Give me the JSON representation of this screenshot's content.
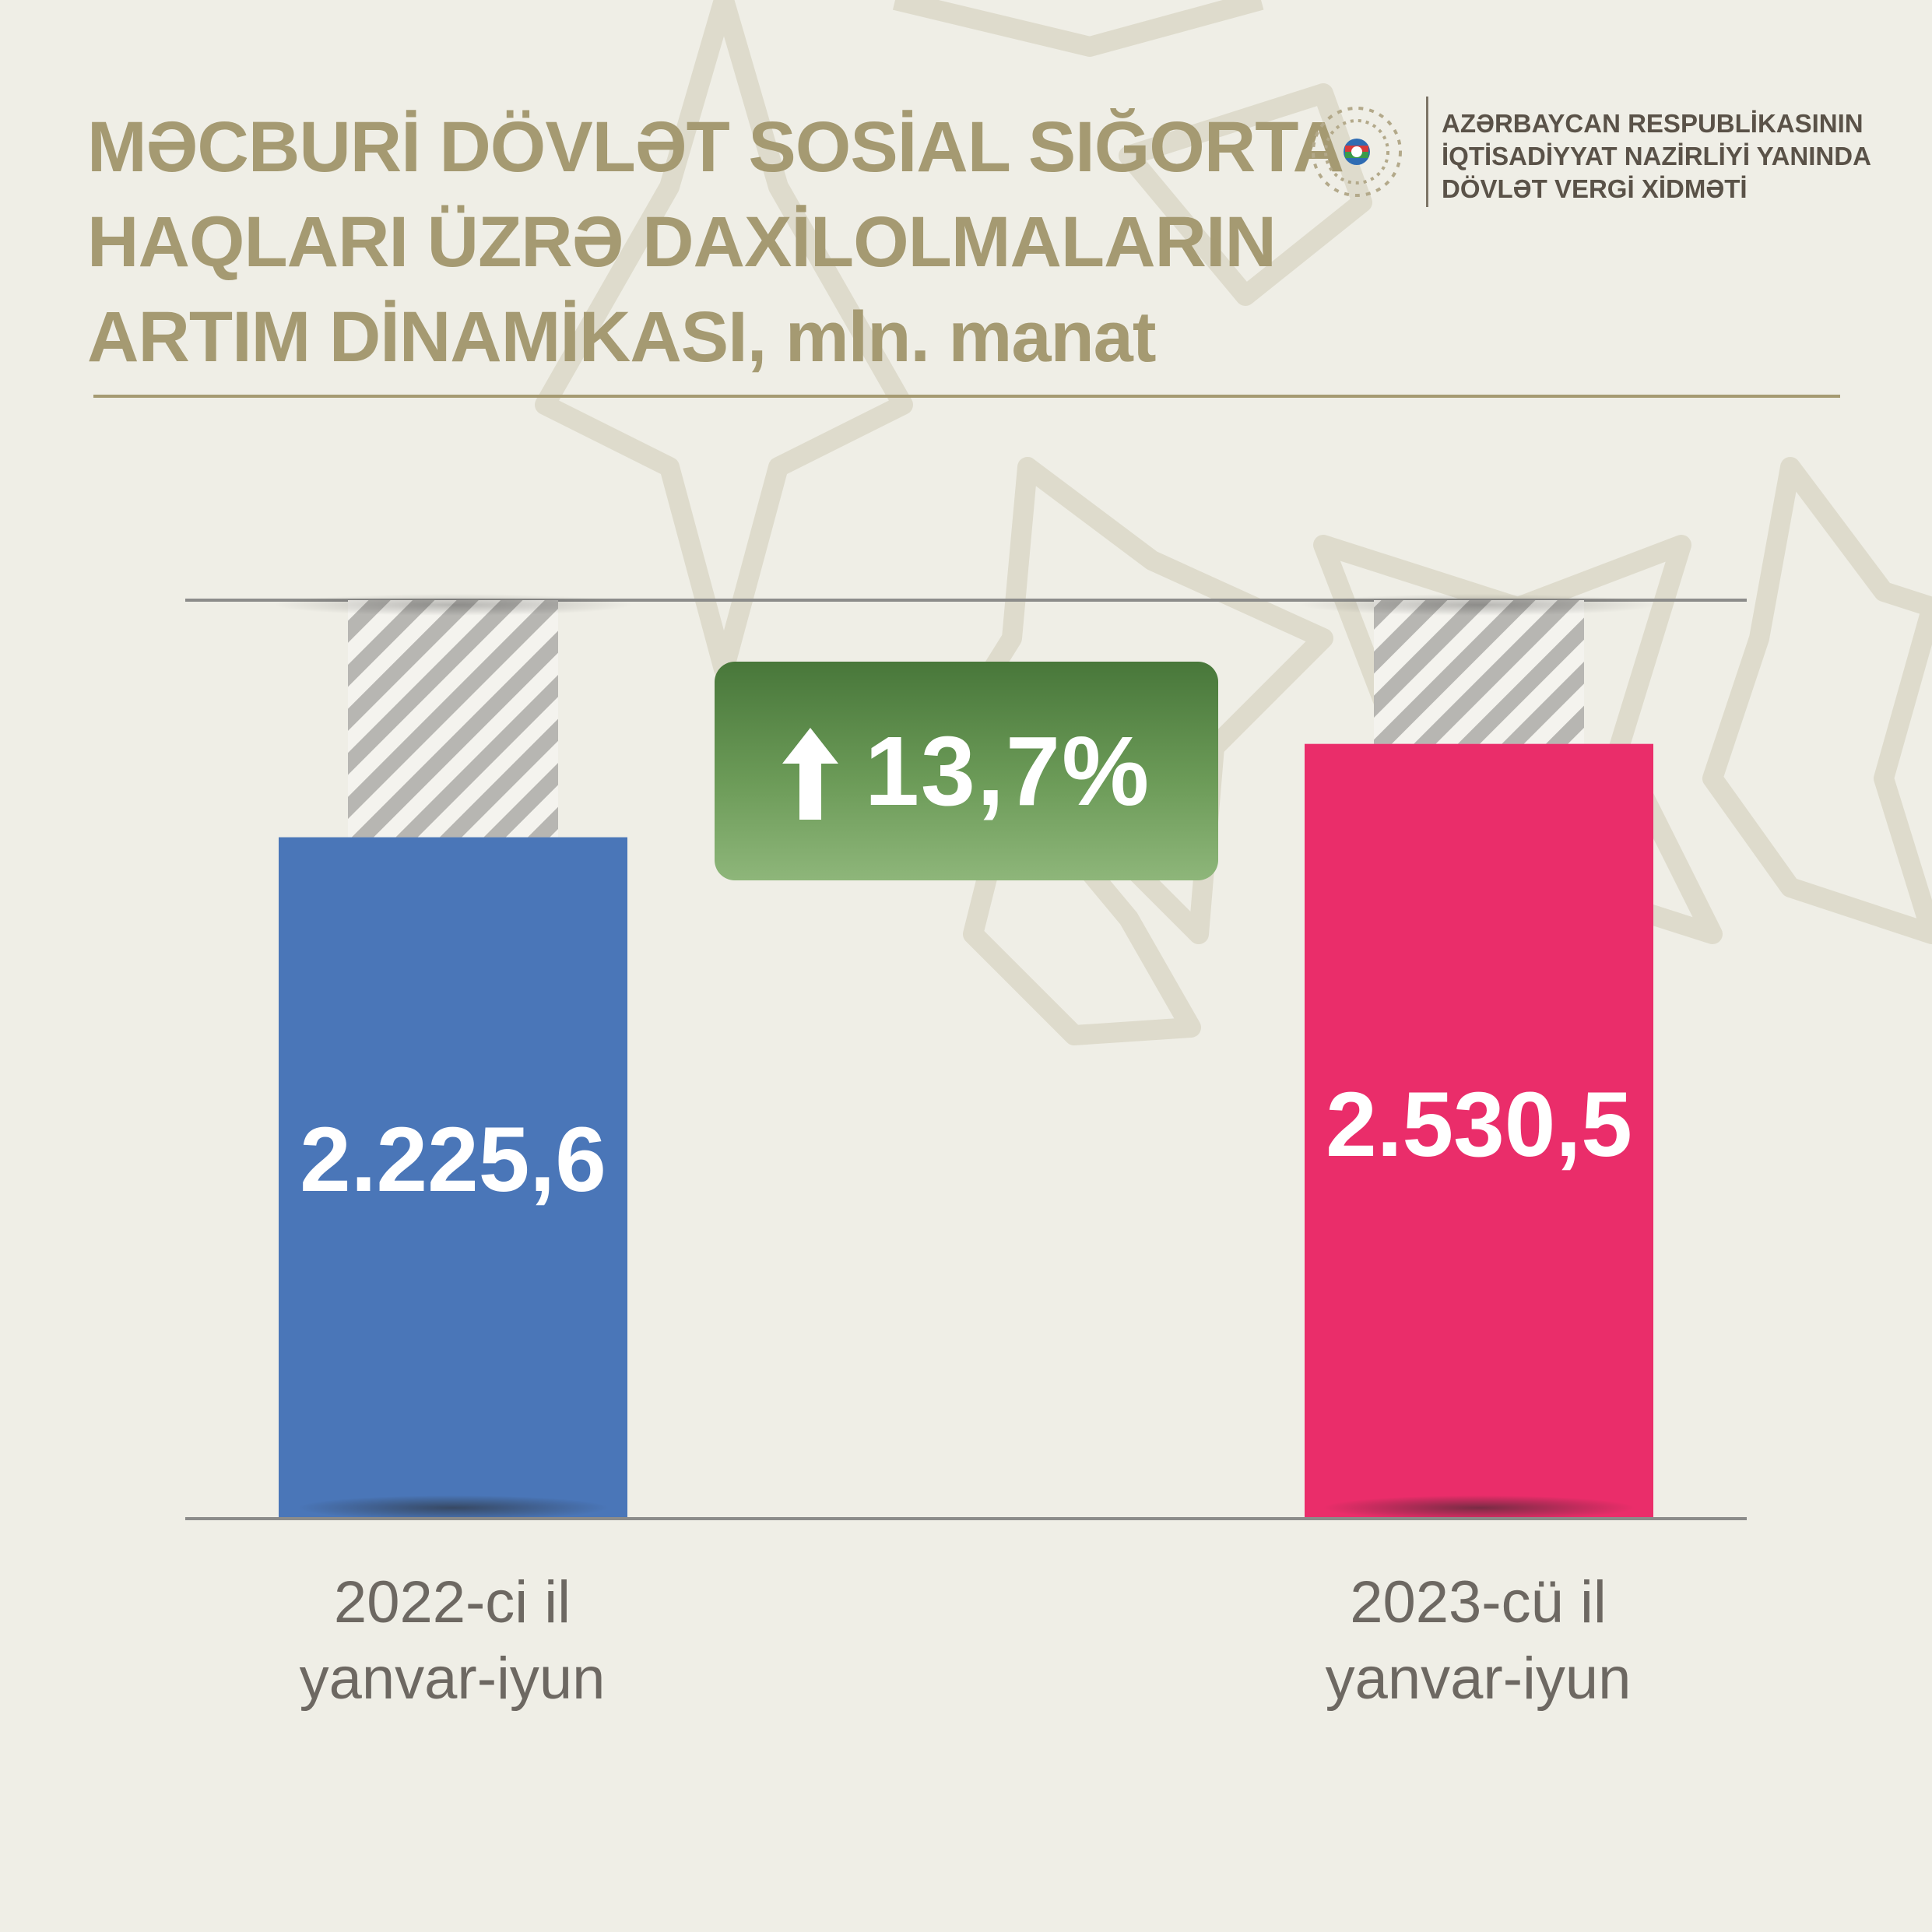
{
  "title": {
    "line1": "MƏCBURİ DÖVLƏT SOSİAL SIĞORTA",
    "line2": "HAQLARI ÜZRƏ DAXİLOLMALARIN",
    "line3": "ARTIM DİNAMİKASI, mln. manat"
  },
  "agency": {
    "line1": "AZƏRBAYCAN RESPUBLİKASININ",
    "line2": "İQTİSADİYYAT NAZİRLİYİ YANINDA",
    "line3": "DÖVLƏT VERGİ XİDMƏTİ"
  },
  "badge": {
    "text": "13,7%",
    "icon": "arrow-up-icon"
  },
  "categories": [
    {
      "line1": "2022-ci il",
      "line2": "yanvar-iyun"
    },
    {
      "line1": "2023-cü il",
      "line2": "yanvar-iyun"
    }
  ],
  "colors": {
    "background": "#efeee6",
    "title": "#a59a72",
    "bar_2022": "#4a76b8",
    "bar_2023": "#ea2d6a",
    "badge": "#5e8c4b",
    "hatch": "#b7b6b2"
  },
  "chart_data": {
    "type": "bar",
    "title": "MƏCBURİ DÖVLƏT SOSİAL SIĞORTA HAQLARI ÜZRƏ DAXİLOLMALARIN ARTIM DİNAMİKASI, mln. manat",
    "categories": [
      "2022-ci il yanvar-iyun",
      "2023-cü il yanvar-iyun"
    ],
    "values": [
      2225.6,
      2530.5
    ],
    "value_labels": [
      "2.225,6",
      "2.530,5"
    ],
    "xlabel": "",
    "ylabel": "",
    "ylim": [
      0,
      3000
    ],
    "grid": false,
    "annotation": "13,7%"
  }
}
